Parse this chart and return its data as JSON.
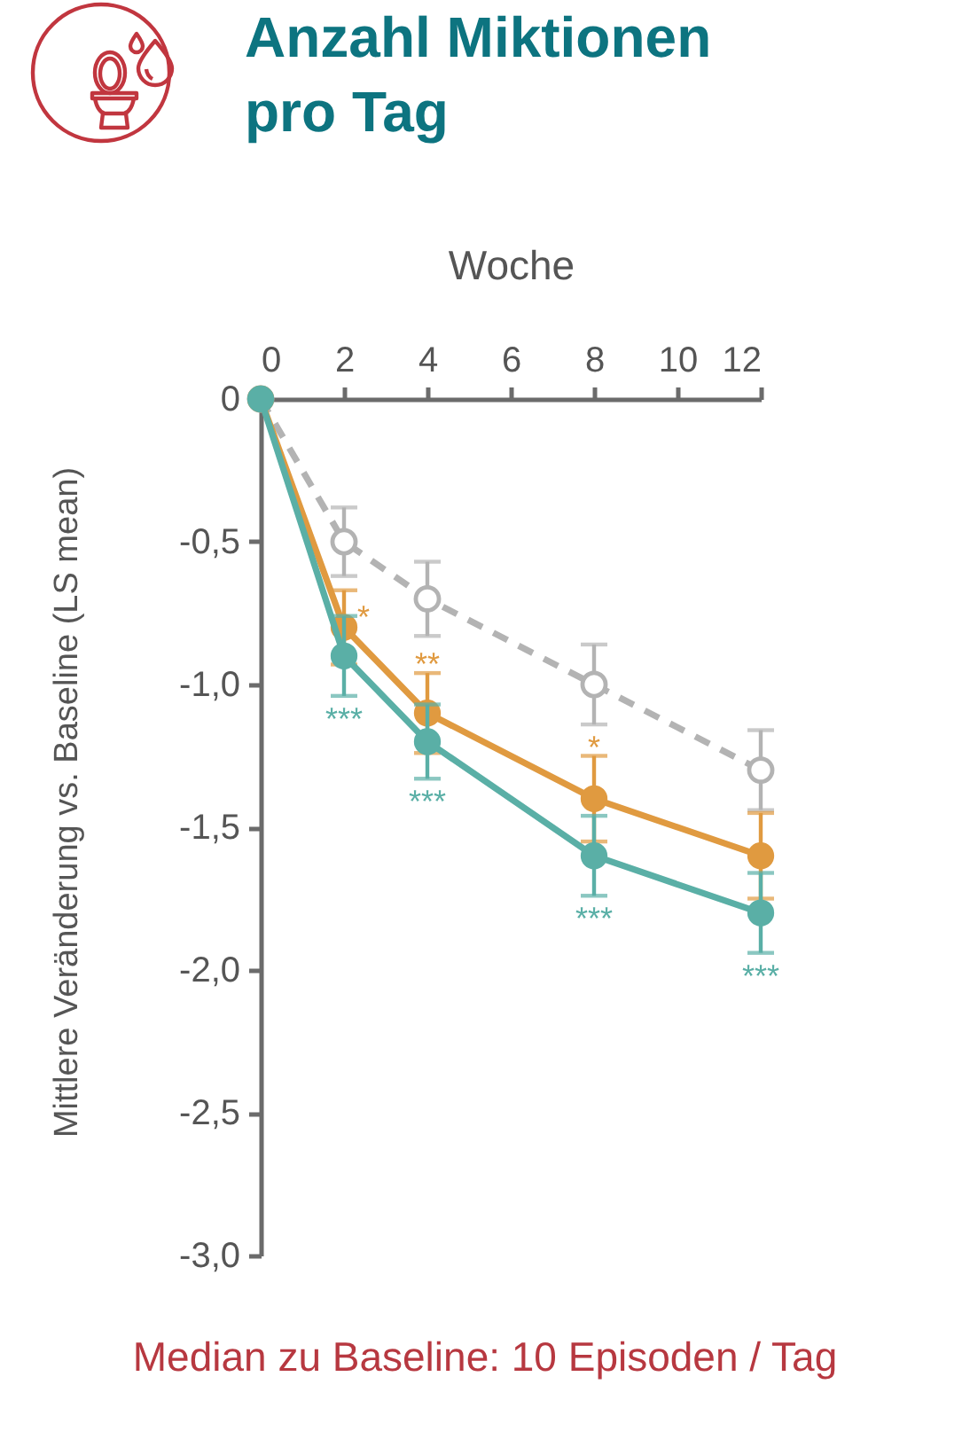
{
  "chart_data": {
    "type": "line",
    "title": "Anzahl Miktionen pro Tag",
    "xlabel": "Woche",
    "ylabel": "Mittlere Veränderung vs. Baseline (LS mean)",
    "x": [
      0,
      2,
      4,
      8,
      12
    ],
    "series": [
      {
        "color": "#b3b3b3",
        "line_style": "dashed",
        "values": [
          0,
          -0.5,
          -0.7,
          -1.0,
          -1.3
        ],
        "errors": [
          null,
          0.12,
          0.13,
          0.14,
          0.14
        ]
      },
      {
        "color": "#e09a40",
        "values": [
          0,
          -0.8,
          -1.1,
          -1.4,
          -1.6
        ],
        "errors": [
          null,
          0.13,
          0.14,
          0.15,
          0.15
        ]
      },
      {
        "color": "#5aafa6",
        "values": [
          0,
          -0.9,
          -1.2,
          -1.6,
          -1.8
        ],
        "errors": [
          null,
          0.14,
          0.13,
          0.14,
          0.14
        ]
      }
    ],
    "xlim": [
      0,
      12
    ],
    "xticks": [
      0,
      2,
      4,
      6,
      8,
      10,
      12
    ],
    "ylim": [
      -3,
      0
    ],
    "yticks": [
      {
        "value": -3,
        "label": "-3,0"
      },
      {
        "value": -2.5,
        "label": "-2,5"
      },
      {
        "value": -2,
        "label": "-2,0"
      },
      {
        "value": -1.5,
        "label": "-1,5"
      },
      {
        "value": -1,
        "label": "-1,0"
      },
      {
        "value": -0.5,
        "label": "-0,5"
      },
      0
    ],
    "marker": "circle",
    "line_style": "solid",
    "annotations": [
      {
        "text": "*",
        "x": 2,
        "y": -0.8
      },
      {
        "text": "**",
        "x": 4,
        "y": -1.1
      },
      {
        "text": "*",
        "x": 8,
        "y": -1.4
      },
      {
        "text": "***",
        "x": 2,
        "y": -0.9
      },
      {
        "text": "***",
        "x": 4,
        "y": -1.2
      },
      {
        "text": "***",
        "x": 8,
        "y": -1.6
      },
      {
        "text": "***",
        "x": 12,
        "y": -1.8
      },
      "Median zu Baseline: 10 Episoden / Tag"
    ]
  }
}
